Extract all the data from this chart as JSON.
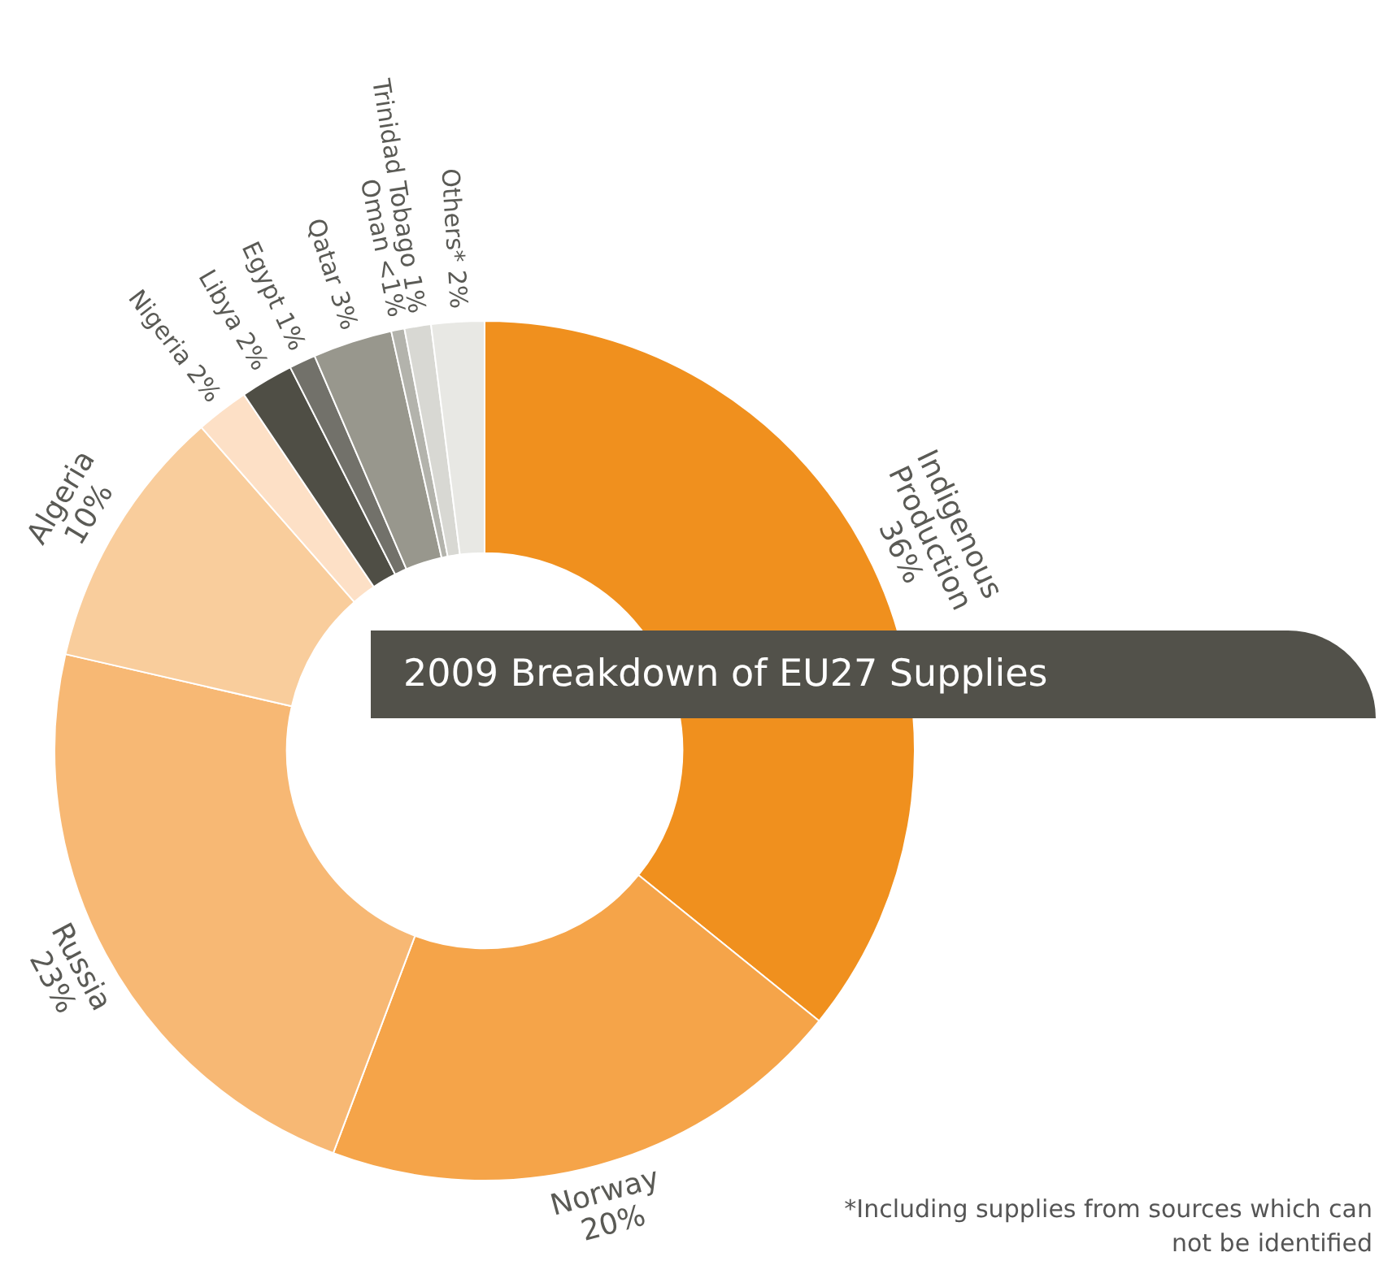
{
  "chart_data": {
    "type": "donut",
    "title": "2009 Breakdown of EU27 Supplies",
    "categories": [
      "Indigenous Production",
      "Norway",
      "Russia",
      "Algeria",
      "Nigeria",
      "Libya",
      "Egypt",
      "Qatar",
      "Oman",
      "Trinidad Tobago",
      "Others*"
    ],
    "values": [
      36,
      20,
      23,
      10,
      2,
      2,
      1,
      3,
      0.5,
      1,
      2
    ],
    "value_labels": [
      "36%",
      "20%",
      "23%",
      "10%",
      "2%",
      "2%",
      "1%",
      "3%",
      "<1%",
      "1%",
      "2%"
    ],
    "colors": [
      "#f0901e",
      "#f5a449",
      "#f7b874",
      "#f9cd9c",
      "#fde0c6",
      "#4f4e45",
      "#72716a",
      "#98978d",
      "#b3b3ac",
      "#d8d8d3",
      "#e8e8e4"
    ],
    "legend": false,
    "annotations": [
      "*Including supplies from sources which can not be identified"
    ]
  }
}
